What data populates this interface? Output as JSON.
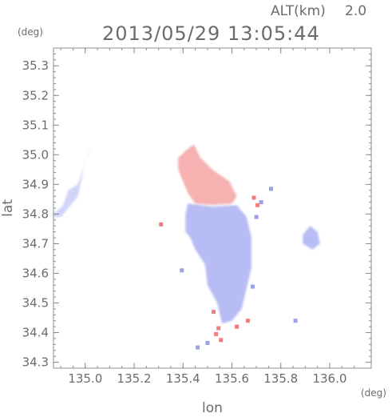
{
  "header": {
    "altitude_label": "ALT(km)",
    "altitude_value": "2.0",
    "datetime": "2013/05/29 13:05:44"
  },
  "chart_data": {
    "type": "heatmap",
    "title": "2013/05/29 13:05:44",
    "xlabel": "lon",
    "ylabel": "lat",
    "x_unit": "(deg)",
    "y_unit": "(deg)",
    "xlim": [
      134.87,
      136.17
    ],
    "ylim": [
      34.28,
      35.36
    ],
    "x_ticks": [
      135.0,
      135.2,
      135.4,
      135.6,
      135.8,
      136.0
    ],
    "x_tick_labels": [
      "135.0",
      "135.2",
      "135.4",
      "135.6",
      "135.8",
      "136.0"
    ],
    "y_ticks": [
      34.3,
      34.4,
      34.5,
      34.6,
      34.7,
      34.8,
      34.9,
      35.0,
      35.1,
      35.2,
      35.3
    ],
    "y_tick_labels": [
      "34.3",
      "34.4",
      "34.5",
      "34.6",
      "34.7",
      "34.8",
      "34.9",
      "35.0",
      "35.1",
      "35.2",
      "35.3"
    ],
    "grid": false,
    "colors": {
      "positive": "#f4a3a3",
      "negative": "#aab0f2",
      "weak_negative": "#d6daf8",
      "axis": "#8c8c8c",
      "text": "#6b6b6b"
    },
    "regions": [
      {
        "name": "west-edge-echo",
        "sign": "negative",
        "polygon": [
          [
            134.87,
            34.8
          ],
          [
            134.91,
            34.83
          ],
          [
            134.93,
            34.88
          ],
          [
            134.97,
            34.9
          ],
          [
            134.99,
            34.95
          ],
          [
            135.01,
            35.0
          ],
          [
            135.03,
            35.03
          ],
          [
            135.0,
            34.98
          ],
          [
            134.97,
            34.86
          ],
          [
            134.94,
            34.83
          ],
          [
            134.9,
            34.79
          ],
          [
            134.87,
            34.79
          ]
        ]
      },
      {
        "name": "north-positive-area",
        "sign": "positive",
        "polygon": [
          [
            135.38,
            34.99
          ],
          [
            135.42,
            35.02
          ],
          [
            135.445,
            35.035
          ],
          [
            135.47,
            34.99
          ],
          [
            135.52,
            34.95
          ],
          [
            135.59,
            34.91
          ],
          [
            135.62,
            34.86
          ],
          [
            135.6,
            34.835
          ],
          [
            135.52,
            34.83
          ],
          [
            135.45,
            34.835
          ],
          [
            135.42,
            34.87
          ],
          [
            135.38,
            34.95
          ]
        ]
      },
      {
        "name": "central-negative-area",
        "sign": "negative",
        "polygon": [
          [
            135.42,
            34.835
          ],
          [
            135.52,
            34.825
          ],
          [
            135.62,
            34.83
          ],
          [
            135.66,
            34.79
          ],
          [
            135.68,
            34.72
          ],
          [
            135.68,
            34.62
          ],
          [
            135.66,
            34.55
          ],
          [
            135.64,
            34.48
          ],
          [
            135.6,
            34.44
          ],
          [
            135.56,
            34.43
          ],
          [
            135.54,
            34.5
          ],
          [
            135.5,
            34.56
          ],
          [
            135.49,
            34.63
          ],
          [
            135.45,
            34.68
          ],
          [
            135.43,
            34.72
          ],
          [
            135.41,
            34.74
          ],
          [
            135.41,
            34.8
          ]
        ]
      },
      {
        "name": "east-small-echo",
        "sign": "negative",
        "polygon": [
          [
            135.89,
            34.73
          ],
          [
            135.92,
            34.76
          ],
          [
            135.95,
            34.74
          ],
          [
            135.96,
            34.7
          ],
          [
            135.93,
            34.68
          ],
          [
            135.89,
            34.7
          ]
        ]
      }
    ],
    "cells": [
      {
        "lon": 135.31,
        "lat": 34.765,
        "sign": "positive"
      },
      {
        "lon": 135.535,
        "lat": 34.395,
        "sign": "positive"
      },
      {
        "lon": 135.555,
        "lat": 34.375,
        "sign": "positive"
      },
      {
        "lon": 135.545,
        "lat": 34.415,
        "sign": "positive"
      },
      {
        "lon": 135.525,
        "lat": 34.47,
        "sign": "positive"
      },
      {
        "lon": 135.62,
        "lat": 34.42,
        "sign": "positive"
      },
      {
        "lon": 135.665,
        "lat": 34.44,
        "sign": "positive"
      },
      {
        "lon": 135.705,
        "lat": 34.83,
        "sign": "positive"
      },
      {
        "lon": 135.69,
        "lat": 34.855,
        "sign": "positive"
      },
      {
        "lon": 135.7,
        "lat": 34.79,
        "sign": "negative"
      },
      {
        "lon": 135.72,
        "lat": 34.84,
        "sign": "negative"
      },
      {
        "lon": 135.76,
        "lat": 34.885,
        "sign": "negative"
      },
      {
        "lon": 135.685,
        "lat": 34.555,
        "sign": "negative"
      },
      {
        "lon": 135.86,
        "lat": 34.44,
        "sign": "negative"
      },
      {
        "lon": 135.46,
        "lat": 34.35,
        "sign": "negative"
      },
      {
        "lon": 135.5,
        "lat": 34.365,
        "sign": "negative"
      },
      {
        "lon": 135.395,
        "lat": 34.61,
        "sign": "negative"
      }
    ]
  }
}
